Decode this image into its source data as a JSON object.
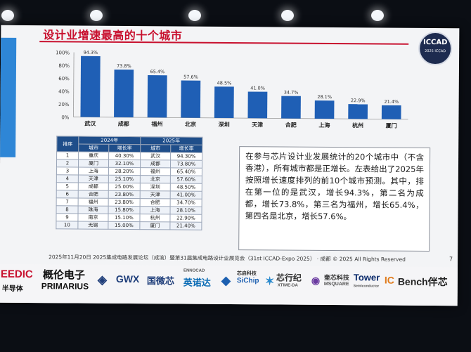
{
  "slide": {
    "title": "设计业增速最高的十个城市",
    "logo_text": "ICCAD",
    "logo_sub": "2025 ICCAD",
    "page_number": "7",
    "footer": "2025年11月20日 2025集成电路发展论坛（成渝）暨第31届集成电路设计业展览会（31st ICCAD-Expo 2025） · 成都 © 2025 All Rights Reserved",
    "paragraph": "在参与芯片设计业发展统计的20个城市中（不含香港），所有城市都是正增长。左表给出了2025年按照增长速度排列的前10个城市预测。其中，排在第一位的是武汉，增长94.3%，第二名为成都，增长73.8%，第三名为福州，增长65.4%，第四名是北京，增长57.6%。"
  },
  "chart_data": {
    "type": "bar",
    "categories": [
      "武汉",
      "成都",
      "福州",
      "北京",
      "深圳",
      "天津",
      "合肥",
      "上海",
      "杭州",
      "厦门"
    ],
    "values": [
      94.3,
      73.8,
      65.4,
      57.6,
      48.5,
      41.0,
      34.7,
      28.1,
      22.9,
      21.4
    ],
    "data_labels": [
      "94.3%",
      "73.8%",
      "65.4%",
      "57.6%",
      "48.5%",
      "41.0%",
      "34.7%",
      "28.1%",
      "22.9%",
      "21.4%"
    ],
    "yticks": [
      "0%",
      "20%",
      "40%",
      "60%",
      "80%",
      "100%"
    ],
    "ylim": [
      0,
      100
    ],
    "bar_color": "#1f5fb5",
    "grid": false,
    "title": "",
    "xlabel": "",
    "ylabel": ""
  },
  "table": {
    "group_headers": [
      "排序",
      "2024年",
      "2025年"
    ],
    "sub_headers": [
      "城市",
      "增长率",
      "城市",
      "增长率"
    ],
    "rows": [
      [
        "1",
        "重庆",
        "40.30%",
        "武汉",
        "94.30%"
      ],
      [
        "2",
        "厦门",
        "32.10%",
        "成都",
        "73.80%"
      ],
      [
        "3",
        "上海",
        "28.20%",
        "福州",
        "65.40%"
      ],
      [
        "4",
        "天津",
        "25.10%",
        "北京",
        "57.60%"
      ],
      [
        "5",
        "成都",
        "25.00%",
        "深圳",
        "48.50%"
      ],
      [
        "6",
        "合肥",
        "23.80%",
        "天津",
        "41.00%"
      ],
      [
        "7",
        "福州",
        "23.80%",
        "合肥",
        "34.70%"
      ],
      [
        "8",
        "珠海",
        "15.80%",
        "上海",
        "28.10%"
      ],
      [
        "9",
        "南京",
        "15.10%",
        "杭州",
        "22.90%"
      ],
      [
        "10",
        "无锡",
        "15.00%",
        "厦门",
        "21.40%"
      ]
    ]
  },
  "sponsors": [
    "EEDIC",
    "半导体",
    "概伦电子",
    "PRIMARIUS",
    "GWX",
    "国微芯",
    "ENNOCAD",
    "英诺达",
    "芯启科技",
    "SiChip",
    "芯行纪",
    "XTIME-DA",
    "奎芯科技",
    "MSQUARE",
    "Tower",
    "Semiconductor",
    "IC",
    "Bench伴芯"
  ],
  "colors": {
    "title_red": "#c8102e",
    "table_header": "#1f4e8a",
    "accent_blue": "#2e86d6"
  }
}
